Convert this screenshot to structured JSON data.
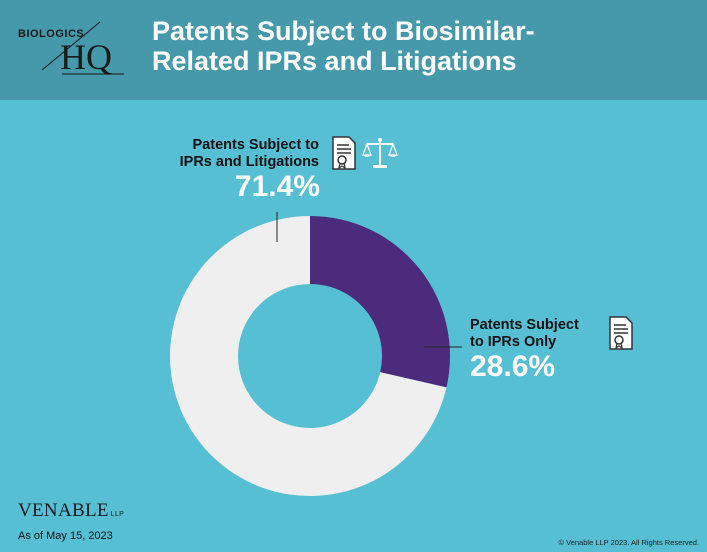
{
  "header": {
    "title_line1": "Patents Subject to Biosimilar-",
    "title_line2": "Related IPRs and Litigations",
    "logo_small": "BIOLOGICS",
    "logo_big": "HQ"
  },
  "labels": {
    "litigation": {
      "line1": "Patents Subject to",
      "line2": "IPRs and Litigations",
      "pct": "71.4%"
    },
    "iprs_only": {
      "line1": "Patents Subject",
      "line2": "to IPRs Only",
      "pct": "28.6%"
    }
  },
  "chart_data": {
    "type": "pie",
    "title": "Patents Subject to Biosimilar-Related IPRs and Litigations",
    "slices": [
      {
        "name": "Patents Subject to IPRs Only",
        "value": 28.6,
        "color": "#4c2a7c"
      },
      {
        "name": "Patents Subject to IPRs and Litigations",
        "value": 71.4,
        "color": "#efefef"
      }
    ]
  },
  "footer": {
    "brand": "VENABLE",
    "brand_suffix": "LLP",
    "as_of": "As of May 15, 2023",
    "copyright": "© Venable LLP 2023. All Rights Reserved."
  },
  "icons": [
    "certificate-icon",
    "scales-icon"
  ]
}
